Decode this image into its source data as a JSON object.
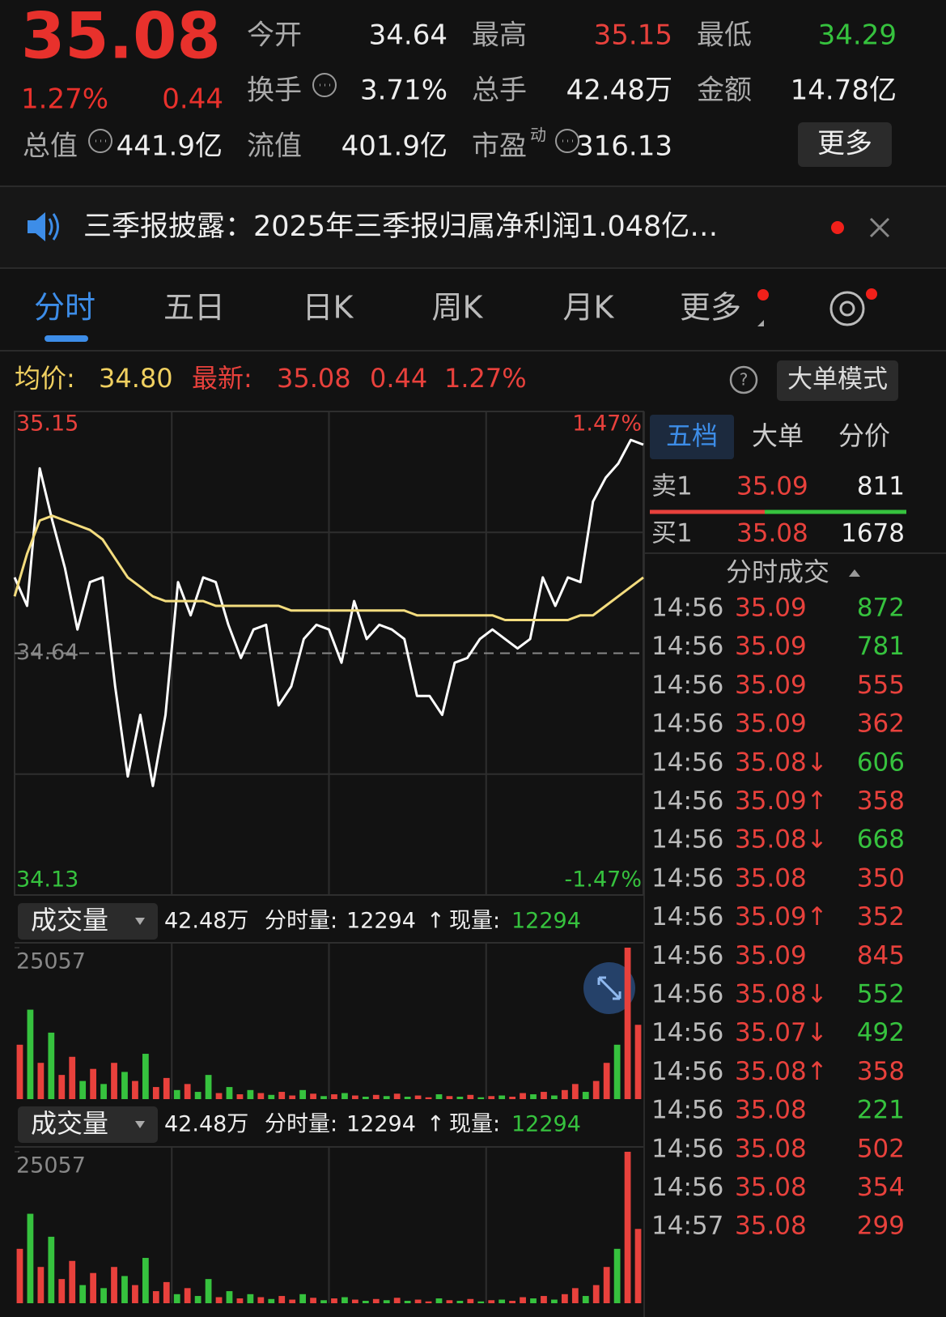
{
  "quote": {
    "price": "35.08",
    "change_pct": "1.27%",
    "change": "0.44",
    "fields": [
      {
        "label": "今开",
        "value": "34.64"
      },
      {
        "label": "最高",
        "value": "35.15",
        "color": "#e8413c"
      },
      {
        "label": "最低",
        "value": "34.29",
        "color": "#36c23e"
      },
      {
        "label": "换手",
        "value": "3.71%"
      },
      {
        "label": "总手",
        "value": "42.48万"
      },
      {
        "label": "金额",
        "value": "14.78亿"
      },
      {
        "label": "总值",
        "value": "441.9亿"
      },
      {
        "label": "流值",
        "value": "401.9亿"
      },
      {
        "label": "市盈",
        "sup": "动",
        "value": "316.13"
      }
    ],
    "more": "更多"
  },
  "notice": {
    "text": "三季报披露：2025年三季报归属净利润1.048亿…"
  },
  "tabs": [
    "分时",
    "五日",
    "日K",
    "周K",
    "月K",
    "更多"
  ],
  "info_bar": {
    "avg_label": "均价:",
    "avg": "34.80",
    "latest_label": "最新:",
    "latest": "35.08",
    "change": "0.44",
    "change_pct": "1.27%",
    "mode": "大单模式"
  },
  "chart_data": [
    {
      "type": "line",
      "ylim": [
        34.13,
        35.15
      ],
      "yticks": [
        34.13,
        35.15
      ],
      "reference": 34.64,
      "y2lim": [
        -1.47,
        1.47
      ],
      "y2ticks": [
        {
          "value": -1.47,
          "label": "-1.47%"
        },
        {
          "value": 1.47,
          "label": "1.47%"
        }
      ],
      "series": [
        {
          "color": "#ffffff",
          "values": [
            34.8,
            34.74,
            35.03,
            34.92,
            34.82,
            34.69,
            34.79,
            34.8,
            34.57,
            34.38,
            34.51,
            34.36,
            34.51,
            34.79,
            34.72,
            34.8,
            34.79,
            34.7,
            34.63,
            34.69,
            34.7,
            34.53,
            34.57,
            34.67,
            34.7,
            34.69,
            34.62,
            34.75,
            34.67,
            34.7,
            34.69,
            34.67,
            34.55,
            34.55,
            34.51,
            34.62,
            34.63,
            34.67,
            34.69,
            34.67,
            34.65,
            34.67,
            34.8,
            34.74,
            34.8,
            34.79,
            34.96,
            35.01,
            35.04,
            35.09,
            35.08
          ]
        },
        {
          "color": "#f3dc7e",
          "values": [
            34.76,
            34.85,
            34.92,
            34.93,
            34.92,
            34.91,
            34.9,
            34.88,
            34.84,
            34.8,
            34.78,
            34.76,
            34.75,
            34.75,
            34.75,
            34.75,
            34.74,
            34.74,
            34.74,
            34.74,
            34.74,
            34.74,
            34.73,
            34.73,
            34.73,
            34.73,
            34.73,
            34.73,
            34.73,
            34.73,
            34.73,
            34.73,
            34.72,
            34.72,
            34.72,
            34.72,
            34.72,
            34.72,
            34.72,
            34.71,
            34.71,
            34.71,
            34.71,
            34.71,
            34.71,
            34.72,
            34.72,
            34.74,
            34.76,
            34.78,
            34.8
          ]
        }
      ]
    },
    {
      "type": "bar",
      "ylim": [
        0,
        25057
      ],
      "yticks": [
        25057
      ],
      "values": [
        9000,
        14800,
        6000,
        11000,
        4000,
        7000,
        3000,
        5000,
        2500,
        6000,
        4500,
        3000,
        7500,
        2000,
        3500,
        1500,
        2500,
        1200,
        4000,
        1000,
        2000,
        800,
        1500,
        1000,
        700,
        1200,
        600,
        1500,
        900,
        500,
        800,
        1000,
        600,
        400,
        700,
        500,
        900,
        400,
        600,
        300,
        800,
        500,
        400,
        700,
        300,
        500,
        600,
        400,
        1000,
        800,
        1200,
        600,
        1500,
        2500,
        1200,
        3000,
        6000,
        9000,
        25057,
        12294
      ],
      "colors": [
        "#e8413c",
        "#36c23e",
        "#e8413c",
        "#36c23e",
        "#e8413c",
        "#e8413c",
        "#36c23e",
        "#e8413c",
        "#36c23e",
        "#e8413c",
        "#36c23e",
        "#e8413c",
        "#36c23e",
        "#e8413c",
        "#e8413c",
        "#36c23e",
        "#e8413c",
        "#36c23e",
        "#36c23e",
        "#e8413c",
        "#36c23e",
        "#e8413c",
        "#36c23e",
        "#e8413c",
        "#36c23e",
        "#e8413c",
        "#e8413c",
        "#36c23e",
        "#e8413c",
        "#36c23e",
        "#e8413c",
        "#36c23e",
        "#e8413c",
        "#36c23e",
        "#e8413c",
        "#36c23e",
        "#e8413c",
        "#36c23e",
        "#e8413c",
        "#e8413c",
        "#36c23e",
        "#e8413c",
        "#36c23e",
        "#e8413c",
        "#36c23e",
        "#e8413c",
        "#36c23e",
        "#e8413c",
        "#e8413c",
        "#36c23e",
        "#e8413c",
        "#36c23e",
        "#e8413c",
        "#e8413c",
        "#36c23e",
        "#e8413c",
        "#e8413c",
        "#36c23e",
        "#e8413c",
        "#e8413c"
      ]
    },
    {
      "type": "bar",
      "ylim": [
        0,
        25057
      ],
      "yticks": [
        25057
      ],
      "values": [
        9000,
        14800,
        6000,
        11000,
        4000,
        7000,
        3000,
        5000,
        2500,
        6000,
        4500,
        3000,
        7500,
        2000,
        3500,
        1500,
        2500,
        1200,
        4000,
        1000,
        2000,
        800,
        1500,
        1000,
        700,
        1200,
        600,
        1500,
        900,
        500,
        800,
        1000,
        600,
        400,
        700,
        500,
        900,
        400,
        600,
        300,
        800,
        500,
        400,
        700,
        300,
        500,
        600,
        400,
        1000,
        800,
        1200,
        600,
        1500,
        2500,
        1200,
        3000,
        6000,
        9000,
        25057,
        12294
      ],
      "colors": [
        "#e8413c",
        "#36c23e",
        "#e8413c",
        "#36c23e",
        "#e8413c",
        "#e8413c",
        "#36c23e",
        "#e8413c",
        "#36c23e",
        "#e8413c",
        "#36c23e",
        "#e8413c",
        "#36c23e",
        "#e8413c",
        "#e8413c",
        "#36c23e",
        "#e8413c",
        "#36c23e",
        "#36c23e",
        "#e8413c",
        "#36c23e",
        "#e8413c",
        "#36c23e",
        "#e8413c",
        "#36c23e",
        "#e8413c",
        "#e8413c",
        "#36c23e",
        "#e8413c",
        "#36c23e",
        "#e8413c",
        "#36c23e",
        "#e8413c",
        "#36c23e",
        "#e8413c",
        "#36c23e",
        "#e8413c",
        "#36c23e",
        "#e8413c",
        "#e8413c",
        "#36c23e",
        "#e8413c",
        "#36c23e",
        "#e8413c",
        "#36c23e",
        "#e8413c",
        "#36c23e",
        "#e8413c",
        "#e8413c",
        "#36c23e",
        "#e8413c",
        "#36c23e",
        "#e8413c",
        "#e8413c",
        "#36c23e",
        "#e8413c",
        "#e8413c",
        "#36c23e",
        "#e8413c",
        "#e8413c"
      ]
    }
  ],
  "volume_headers": [
    {
      "label": "成交量",
      "total": "42.48万",
      "minute_label": "分时量:",
      "minute": "12294",
      "arrow": "↑",
      "current_label": "现量:",
      "current": "12294"
    },
    {
      "label": "成交量",
      "total": "42.48万",
      "minute_label": "分时量:",
      "minute": "12294",
      "arrow": "↑",
      "current_label": "现量:",
      "current": "12294"
    }
  ],
  "side_tabs": [
    "五档",
    "大单",
    "分价"
  ],
  "order_book": {
    "ask": {
      "label": "卖1",
      "price": "35.09",
      "volume": "811"
    },
    "bid": {
      "label": "买1",
      "price": "35.08",
      "volume": "1678"
    }
  },
  "trades": {
    "title": "分时成交",
    "rows": [
      {
        "time": "14:56",
        "price": "35.09",
        "volume": "872",
        "color": "#36c23e"
      },
      {
        "time": "14:56",
        "price": "35.09",
        "volume": "781",
        "color": "#36c23e"
      },
      {
        "time": "14:56",
        "price": "35.09",
        "volume": "555",
        "color": "#e8413c"
      },
      {
        "time": "14:56",
        "price": "35.09",
        "volume": "362",
        "color": "#e8413c"
      },
      {
        "time": "14:56",
        "price": "35.08↓",
        "volume": "606",
        "color": "#36c23e"
      },
      {
        "time": "14:56",
        "price": "35.09↑",
        "volume": "358",
        "color": "#e8413c"
      },
      {
        "time": "14:56",
        "price": "35.08↓",
        "volume": "668",
        "color": "#36c23e"
      },
      {
        "time": "14:56",
        "price": "35.08",
        "volume": "350",
        "color": "#e8413c"
      },
      {
        "time": "14:56",
        "price": "35.09↑",
        "volume": "352",
        "color": "#e8413c"
      },
      {
        "time": "14:56",
        "price": "35.09",
        "volume": "845",
        "color": "#e8413c"
      },
      {
        "time": "14:56",
        "price": "35.08↓",
        "volume": "552",
        "color": "#36c23e"
      },
      {
        "time": "14:56",
        "price": "35.07↓",
        "volume": "492",
        "color": "#36c23e"
      },
      {
        "time": "14:56",
        "price": "35.08↑",
        "volume": "358",
        "color": "#e8413c"
      },
      {
        "time": "14:56",
        "price": "35.08",
        "volume": "221",
        "color": "#36c23e"
      },
      {
        "time": "14:56",
        "price": "35.08",
        "volume": "502",
        "color": "#e8413c"
      },
      {
        "time": "14:56",
        "price": "35.08",
        "volume": "354",
        "color": "#e8413c"
      },
      {
        "time": "14:57",
        "price": "35.08",
        "volume": "299",
        "color": "#e8413c"
      }
    ]
  }
}
